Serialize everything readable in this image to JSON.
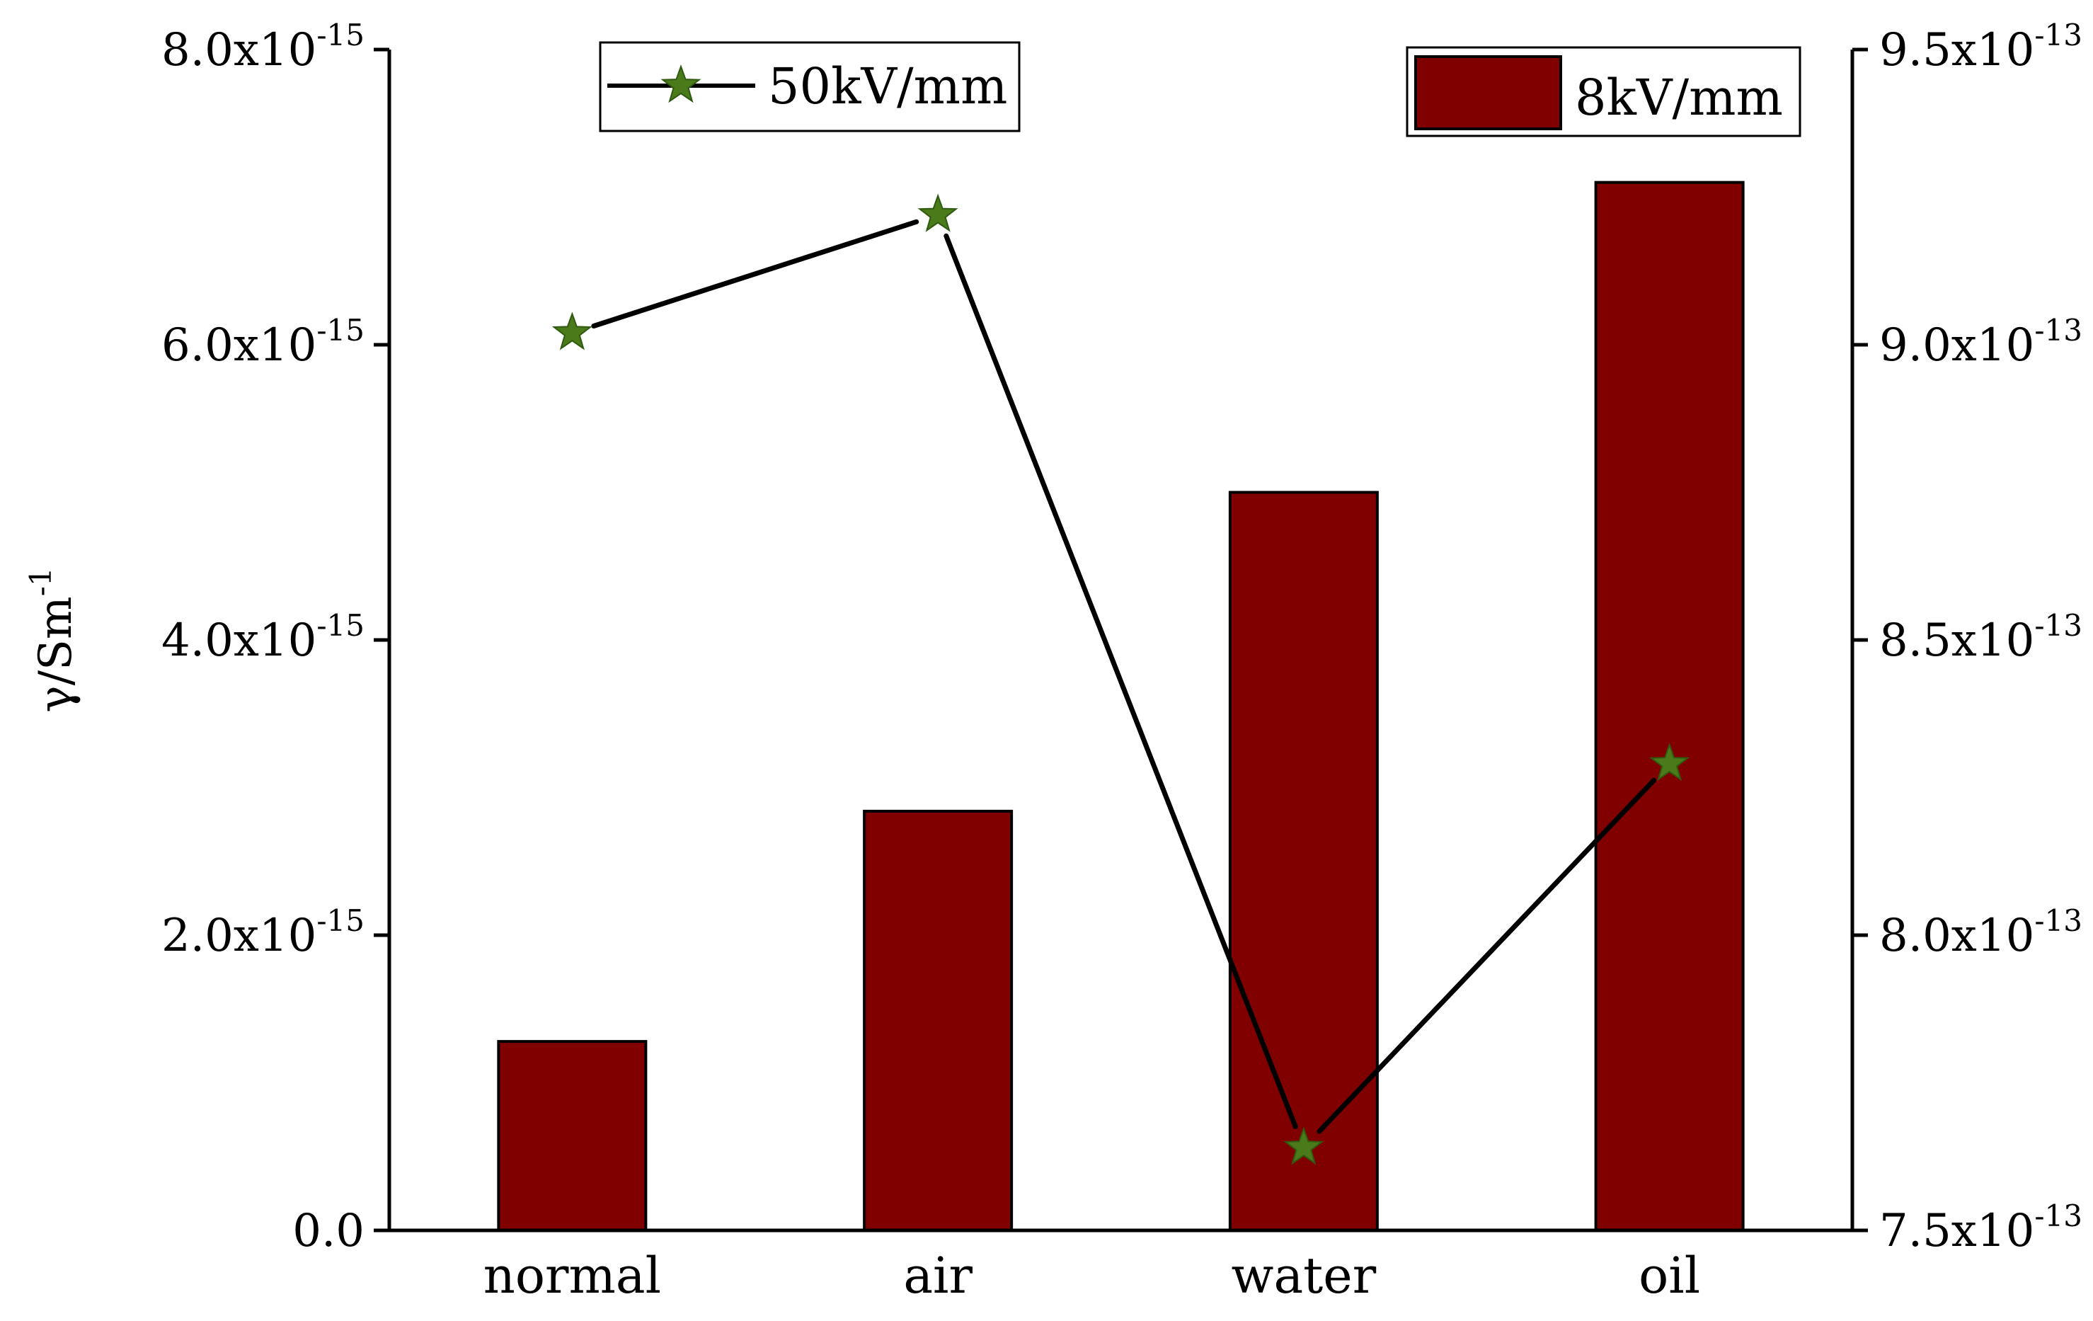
{
  "chart_data": {
    "type": "bar+line",
    "categories": [
      "normal",
      "air",
      "water",
      "oil"
    ],
    "ylabel": {
      "base": "γ/Sm",
      "sup": "-1"
    },
    "left_axis": {
      "ylim": [
        0,
        8e-15
      ],
      "ticks": [
        {
          "value": 0,
          "base": "0.0",
          "sup": ""
        },
        {
          "value": 2e-15,
          "base": "2.0x10",
          "sup": "-15"
        },
        {
          "value": 4e-15,
          "base": "4.0x10",
          "sup": "-15"
        },
        {
          "value": 6e-15,
          "base": "6.0x10",
          "sup": "-15"
        },
        {
          "value": 8e-15,
          "base": "8.0x10",
          "sup": "-15"
        }
      ]
    },
    "right_axis": {
      "ylim": [
        7.5e-13,
        9.5e-13
      ],
      "ticks": [
        {
          "value": 7.5e-13,
          "base": "7.5x10",
          "sup": "-13"
        },
        {
          "value": 8e-13,
          "base": "8.0x10",
          "sup": "-13"
        },
        {
          "value": 8.5e-13,
          "base": "8.5x10",
          "sup": "-13"
        },
        {
          "value": 9e-13,
          "base": "9.0x10",
          "sup": "-13"
        },
        {
          "value": 9.5e-13,
          "base": "9.5x10",
          "sup": "-13"
        }
      ]
    },
    "series": [
      {
        "name": "8kV/mm",
        "type": "bar",
        "axis": "left",
        "color": "#800000",
        "values": [
          1.28e-15,
          2.84e-15,
          5e-15,
          7.1e-15
        ]
      },
      {
        "name": "50kV/mm",
        "type": "line",
        "axis": "right",
        "line_color": "#000000",
        "marker": "star",
        "marker_color": "#4a7a1a",
        "values": [
          9.02e-13,
          9.22e-13,
          7.64e-13,
          8.29e-13
        ]
      }
    ],
    "legends": [
      {
        "series": "50kV/mm",
        "position": "top-left"
      },
      {
        "series": "8kV/mm",
        "position": "top-right"
      }
    ]
  }
}
